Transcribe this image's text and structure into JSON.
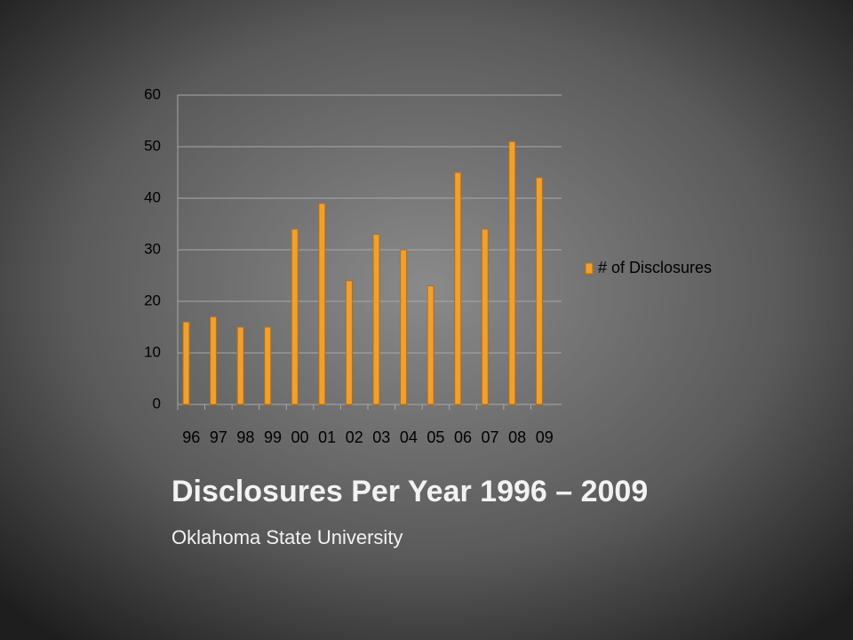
{
  "chart_data": {
    "type": "bar",
    "title": "Disclosures Per Year  1996 – 2009",
    "subtitle": "Oklahoma State University",
    "categories": [
      "96",
      "97",
      "98",
      "99",
      "00",
      "01",
      "02",
      "03",
      "04",
      "05",
      "06",
      "07",
      "08",
      "09"
    ],
    "series": [
      {
        "name": "# of Disclosures",
        "color": "#f0a030",
        "values": [
          16,
          17,
          15,
          15,
          34,
          39,
          24,
          33,
          30,
          23,
          45,
          34,
          51,
          44
        ]
      }
    ],
    "ylim": [
      0,
      60
    ],
    "yticks": [
      0,
      10,
      20,
      30,
      40,
      50,
      60
    ],
    "grid": true,
    "legend": "right"
  }
}
